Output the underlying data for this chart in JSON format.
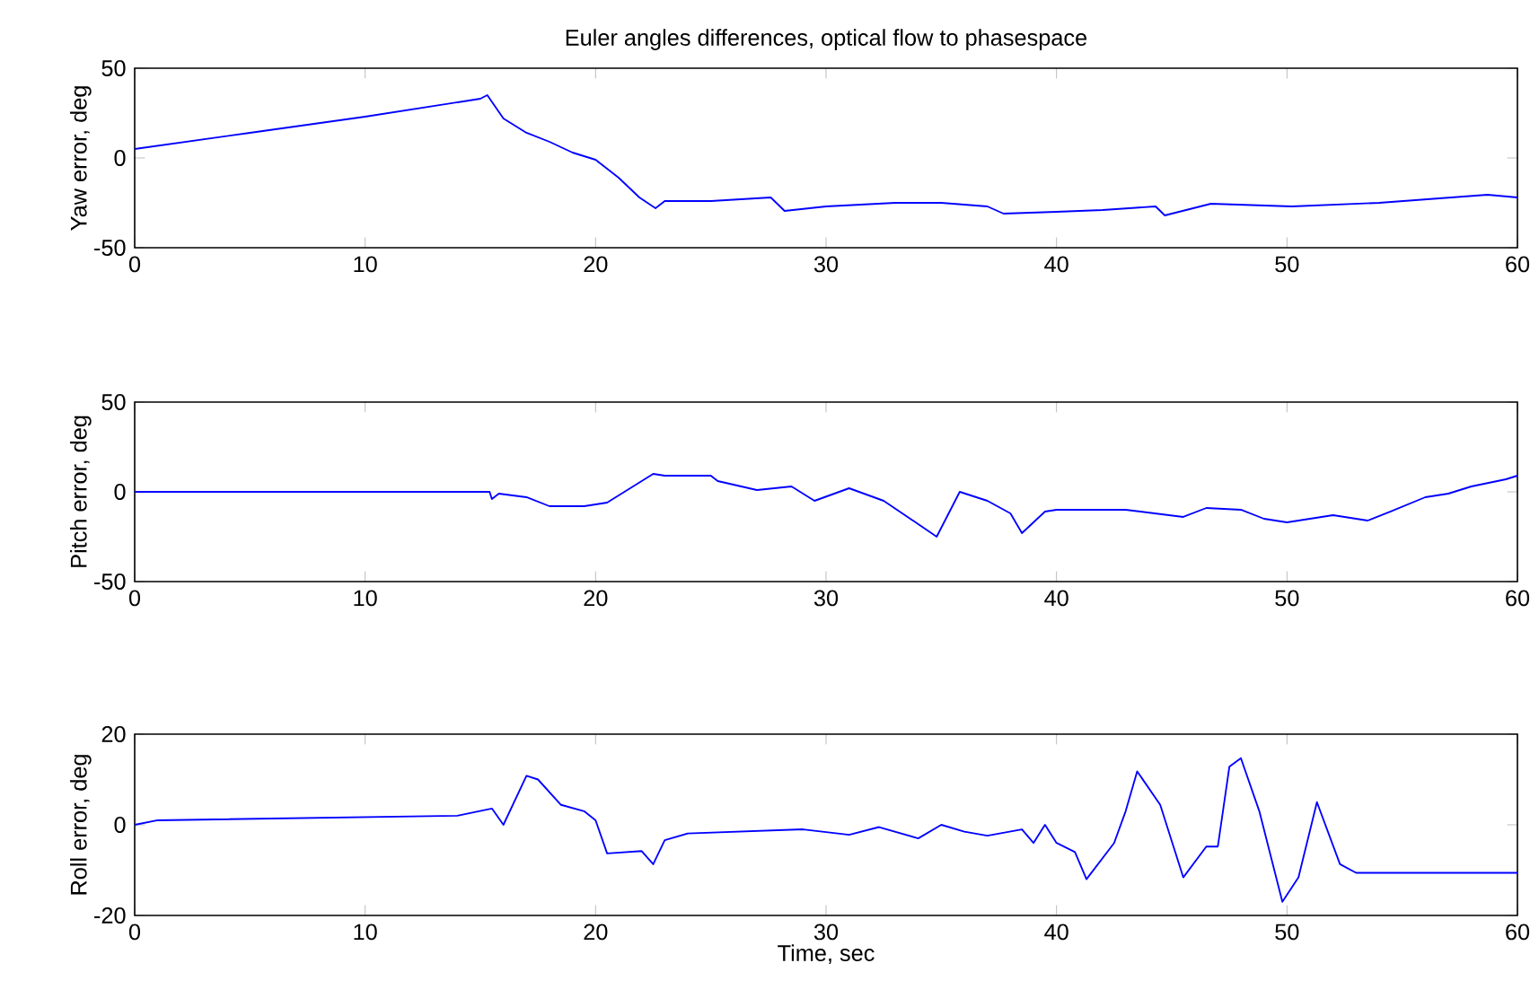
{
  "chart_data": [
    {
      "type": "line",
      "title": "Euler angles differences, optical flow to phasespace",
      "ylabel": "Yaw error, deg",
      "xlim": [
        0,
        60
      ],
      "xticks": [
        0,
        10,
        20,
        30,
        40,
        50,
        60
      ],
      "ylim": [
        -50,
        50
      ],
      "yticks": [
        -50,
        0,
        50
      ],
      "x": [
        0,
        5,
        10,
        15,
        15.3,
        16,
        17,
        18,
        19,
        20,
        21,
        21.9,
        22.6,
        23,
        25,
        27.6,
        28.2,
        30,
        33,
        35,
        37,
        37.7,
        40,
        42,
        44.3,
        44.7,
        46.7,
        50.2,
        54,
        58.7,
        60
      ],
      "series": [
        {
          "color": "#0000ff",
          "values": [
            5,
            14,
            23,
            33,
            35,
            22,
            14,
            9,
            3,
            -1,
            -11,
            -22,
            -28,
            -24,
            -24,
            -22,
            -29.5,
            -27,
            -25,
            -25,
            -27,
            -31,
            -30,
            -29,
            -27,
            -32,
            -25.5,
            -27,
            -25,
            -20.5,
            -22
          ]
        }
      ]
    },
    {
      "type": "line",
      "ylabel": "Pitch error, deg",
      "xlim": [
        0,
        60
      ],
      "xticks": [
        0,
        10,
        20,
        30,
        40,
        50,
        60
      ],
      "ylim": [
        -50,
        50
      ],
      "yticks": [
        -50,
        0,
        50
      ],
      "x": [
        0,
        15.4,
        15.5,
        15.8,
        17,
        18,
        19.5,
        20.5,
        21.5,
        22.5,
        23,
        25,
        25.3,
        27,
        28.5,
        29.5,
        31,
        32.5,
        34,
        34.8,
        35.8,
        37,
        38,
        38.5,
        39.5,
        40,
        43,
        45.5,
        46.5,
        48,
        49,
        50,
        52,
        53.5,
        54.5,
        56,
        57,
        58,
        59.5,
        60
      ],
      "series": [
        {
          "color": "#0000ff",
          "values": [
            0,
            0,
            -4,
            -1,
            -3,
            -8,
            -8,
            -6,
            2,
            10,
            9,
            9,
            6,
            1,
            3,
            -5,
            2,
            -5,
            -18,
            -25,
            0,
            -5,
            -12,
            -23,
            -11,
            -10,
            -10,
            -14,
            -9,
            -10,
            -15,
            -17,
            -13,
            -16,
            -11,
            -3,
            -1,
            3,
            7,
            9
          ]
        }
      ]
    },
    {
      "type": "line",
      "ylabel": "Roll error, deg",
      "xlabel": "Time, sec",
      "xlim": [
        0,
        60
      ],
      "xticks": [
        0,
        10,
        20,
        30,
        40,
        50,
        60
      ],
      "ylim": [
        -20,
        20
      ],
      "yticks": [
        -20,
        0,
        20
      ],
      "x": [
        0,
        1,
        14,
        15.5,
        16,
        17,
        17.5,
        18.5,
        19.5,
        20,
        20.5,
        22,
        22.5,
        23,
        24,
        29,
        31,
        32.3,
        34,
        35,
        36,
        37,
        38.5,
        39,
        39.5,
        40,
        40.8,
        41.3,
        42.5,
        43,
        43.5,
        44.5,
        45.5,
        46.5,
        47,
        47.5,
        48,
        48.8,
        49.8,
        50.5,
        51.3,
        52.3,
        53,
        60
      ],
      "series": [
        {
          "color": "#0000ff",
          "values": [
            0,
            1,
            2,
            3.6,
            0,
            10.8,
            10,
            4.4,
            3,
            1,
            -6.3,
            -5.8,
            -8.7,
            -3.4,
            -1.9,
            -1,
            -2.2,
            -0.5,
            -3,
            0,
            -1.5,
            -2.4,
            -1,
            -4,
            0,
            -4,
            -6,
            -12,
            -4,
            3,
            11.8,
            4.4,
            -11.6,
            -4.8,
            -4.8,
            12.8,
            14.7,
            3,
            -17,
            -11.6,
            5,
            -8.7,
            -10.6,
            -10.6
          ]
        }
      ]
    }
  ]
}
